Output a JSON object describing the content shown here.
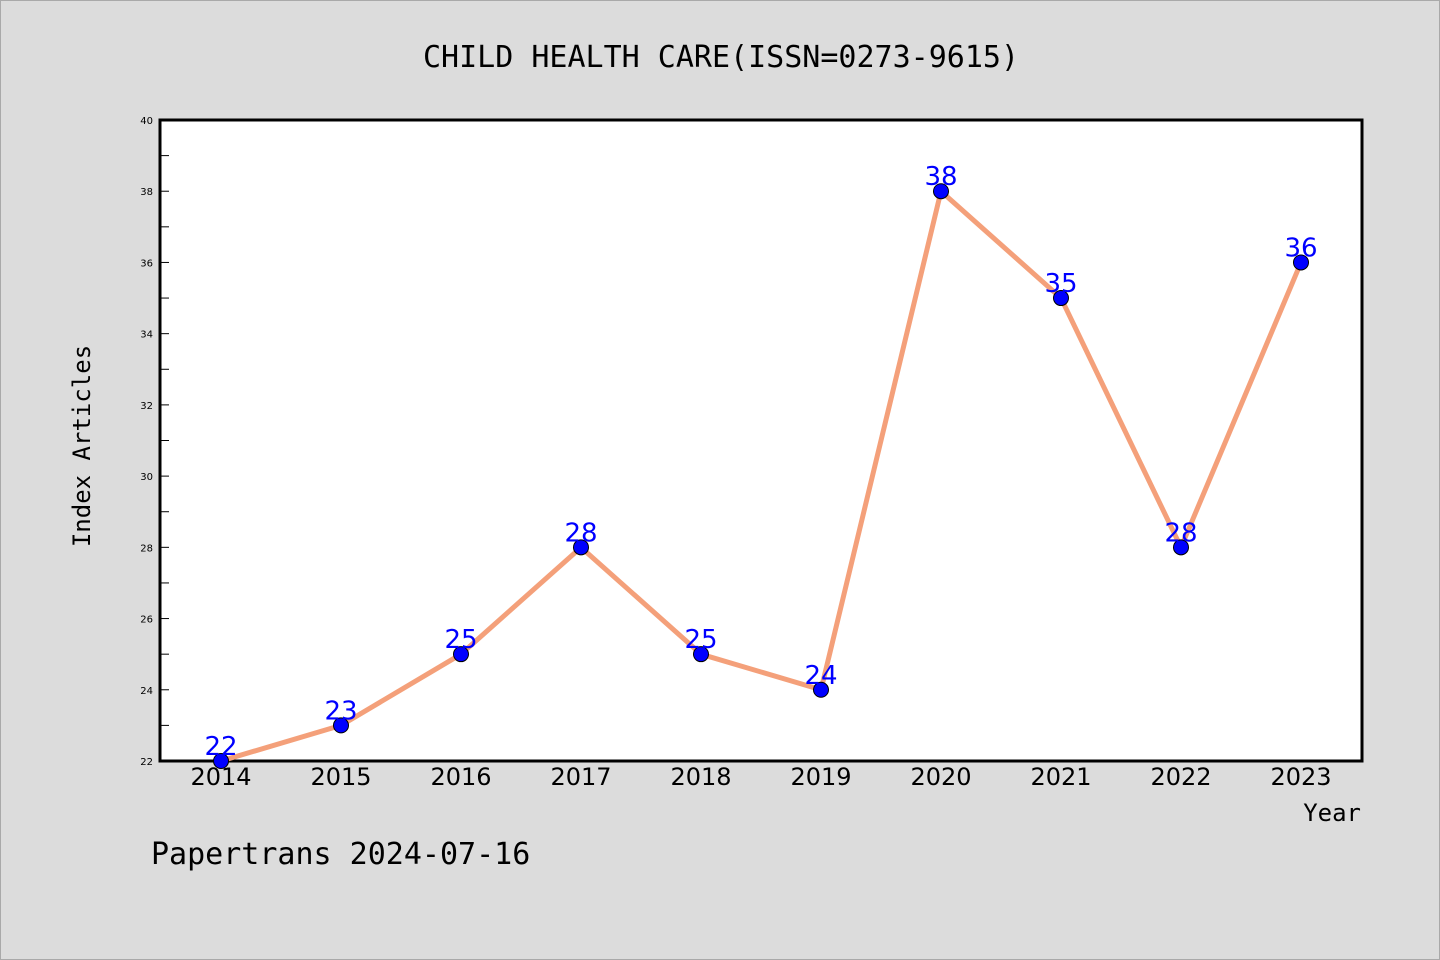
{
  "chart_data": {
    "type": "line",
    "title": "CHILD HEALTH CARE(ISSN=0273-9615)",
    "xlabel": "Year",
    "ylabel": "Index Articles",
    "categories": [
      "2014",
      "2015",
      "2016",
      "2017",
      "2018",
      "2019",
      "2020",
      "2021",
      "2022",
      "2023"
    ],
    "values": [
      22,
      23,
      25,
      28,
      25,
      24,
      38,
      35,
      28,
      36
    ],
    "ylim": [
      22,
      40
    ],
    "y_ticks": [
      22,
      24,
      26,
      28,
      30,
      32,
      34,
      36,
      38,
      40
    ],
    "grid": false,
    "line_color": "#f4a07a",
    "marker_color": "#0000ff",
    "label_color": "#0000ff",
    "background_color": "#dcdcdc",
    "plot_background": "#ffffff"
  },
  "footer": {
    "text": "Papertrans 2024-07-16"
  }
}
